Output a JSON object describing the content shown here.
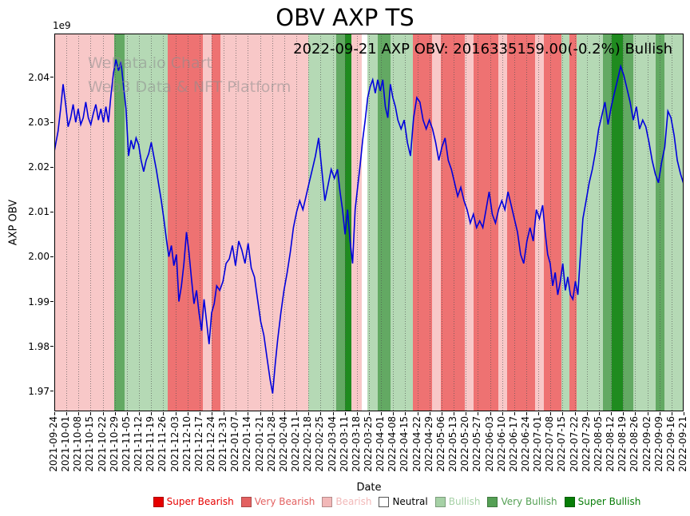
{
  "annotation": "2022-09-21 AXP OBV: 2016335159.00(-0.2%) Bullish",
  "watermark": {
    "line1": "WeData.io Chart",
    "line2": "Web3 Data & NFT Platform"
  },
  "sentiment_colors": {
    "super_bearish": "#e60000",
    "very_bearish": "#ee7272",
    "bearish": "#f8c8c8",
    "neutral": "#ffffff",
    "bullish": "#b5d9b5",
    "very_bullish": "#63a963",
    "super_bullish": "#1f8b1f"
  },
  "legend": [
    {
      "label": "Super Bearish",
      "color": "#e60000",
      "text_color": "#e60000"
    },
    {
      "label": "Very Bearish",
      "color": "#e36161",
      "text_color": "#e36161"
    },
    {
      "label": "Bearish",
      "color": "#f2b8b8",
      "text_color": "#f2b8b8"
    },
    {
      "label": "Neutral",
      "color": "#ffffff",
      "text_color": "#000000",
      "border": "#555555"
    },
    {
      "label": "Bullish",
      "color": "#a6d1a6",
      "text_color": "#a6d1a6"
    },
    {
      "label": "Very Bullish",
      "color": "#55a055",
      "text_color": "#55a055"
    },
    {
      "label": "Super Bullish",
      "color": "#077d07",
      "text_color": "#077d07"
    }
  ],
  "chart_data": {
    "type": "line",
    "title": "OBV AXP TS",
    "xlabel": "Date",
    "ylabel": "AXP OBV",
    "y_unit_multiplier": "1e9",
    "grid": "vertical-dotted-weekly",
    "legend_position": "bottom-center",
    "y_range_1e9": [
      1.9655,
      2.0498
    ],
    "y_ticks": [
      "1.97",
      "1.98",
      "1.99",
      "2.00",
      "2.01",
      "2.02",
      "2.03",
      "2.04"
    ],
    "x_ticks": [
      "2021-09-24",
      "2021-10-01",
      "2021-10-08",
      "2021-10-15",
      "2021-10-22",
      "2021-10-29",
      "2021-11-05",
      "2021-11-12",
      "2021-11-19",
      "2021-11-26",
      "2021-12-03",
      "2021-12-10",
      "2021-12-17",
      "2021-12-24",
      "2021-12-31",
      "2022-01-07",
      "2022-01-14",
      "2022-01-21",
      "2022-01-28",
      "2022-02-04",
      "2022-02-11",
      "2022-02-18",
      "2022-02-25",
      "2022-03-04",
      "2022-03-11",
      "2022-03-18",
      "2022-03-25",
      "2022-04-01",
      "2022-04-08",
      "2022-04-15",
      "2022-04-22",
      "2022-04-29",
      "2022-05-06",
      "2022-05-13",
      "2022-05-20",
      "2022-05-27",
      "2022-06-03",
      "2022-06-10",
      "2022-06-17",
      "2022-06-24",
      "2022-07-01",
      "2022-07-08",
      "2022-07-15",
      "2022-07-22",
      "2022-07-29",
      "2022-08-05",
      "2022-08-12",
      "2022-08-19",
      "2022-08-26",
      "2022-09-02",
      "2022-09-09",
      "2022-09-16",
      "2022-09-21"
    ],
    "line_color": "#0000dd",
    "latest_point": {
      "date": "2022-09-21",
      "obv": 2016335159.0,
      "change_pct": -0.2,
      "signal": "Bullish"
    },
    "series": [
      {
        "name": "AXP OBV",
        "x_frac": [
          0.0,
          0.006,
          0.01,
          0.014,
          0.018,
          0.022,
          0.026,
          0.03,
          0.034,
          0.038,
          0.042,
          0.046,
          0.05,
          0.054,
          0.058,
          0.062,
          0.066,
          0.07,
          0.074,
          0.078,
          0.082,
          0.086,
          0.09,
          0.094,
          0.098,
          0.102,
          0.106,
          0.11,
          0.114,
          0.118,
          0.122,
          0.126,
          0.13,
          0.134,
          0.138,
          0.142,
          0.146,
          0.15,
          0.154,
          0.158,
          0.162,
          0.166,
          0.17,
          0.174,
          0.178,
          0.182,
          0.186,
          0.19,
          0.194,
          0.198,
          0.202,
          0.206,
          0.21,
          0.214,
          0.218,
          0.222,
          0.226,
          0.23,
          0.234,
          0.238,
          0.242,
          0.246,
          0.25,
          0.254,
          0.258,
          0.263,
          0.268,
          0.273,
          0.278,
          0.283,
          0.288,
          0.293,
          0.298,
          0.303,
          0.308,
          0.313,
          0.318,
          0.323,
          0.328,
          0.333,
          0.338,
          0.343,
          0.347,
          0.351,
          0.355,
          0.36,
          0.365,
          0.37,
          0.375,
          0.38,
          0.385,
          0.39,
          0.395,
          0.4,
          0.405,
          0.41,
          0.415,
          0.42,
          0.425,
          0.43,
          0.435,
          0.44,
          0.445,
          0.45,
          0.454,
          0.458,
          0.462,
          0.466,
          0.47,
          0.474,
          0.478,
          0.482,
          0.486,
          0.49,
          0.494,
          0.498,
          0.502,
          0.506,
          0.51,
          0.514,
          0.518,
          0.522,
          0.526,
          0.53,
          0.534,
          0.538,
          0.542,
          0.546,
          0.551,
          0.556,
          0.561,
          0.566,
          0.571,
          0.576,
          0.581,
          0.586,
          0.591,
          0.596,
          0.601,
          0.606,
          0.611,
          0.616,
          0.621,
          0.626,
          0.631,
          0.636,
          0.641,
          0.646,
          0.651,
          0.656,
          0.661,
          0.666,
          0.671,
          0.676,
          0.681,
          0.686,
          0.691,
          0.696,
          0.701,
          0.706,
          0.711,
          0.716,
          0.721,
          0.726,
          0.731,
          0.736,
          0.741,
          0.746,
          0.751,
          0.756,
          0.761,
          0.766,
          0.771,
          0.776,
          0.78,
          0.784,
          0.788,
          0.792,
          0.796,
          0.8,
          0.804,
          0.808,
          0.812,
          0.816,
          0.82,
          0.824,
          0.828,
          0.832,
          0.836,
          0.84,
          0.845,
          0.85,
          0.855,
          0.86,
          0.865,
          0.87,
          0.875,
          0.88,
          0.885,
          0.89,
          0.895,
          0.9,
          0.905,
          0.91,
          0.915,
          0.92,
          0.925,
          0.93,
          0.935,
          0.94,
          0.945,
          0.95,
          0.955,
          0.96,
          0.965,
          0.97,
          0.975,
          0.98,
          0.985,
          0.99,
          0.995,
          1.0
        ],
        "y_1e9": [
          2.0235,
          2.028,
          2.033,
          2.0385,
          2.034,
          2.029,
          2.031,
          2.034,
          2.03,
          2.033,
          2.0295,
          2.031,
          2.0345,
          2.031,
          2.0295,
          2.032,
          2.034,
          2.0305,
          2.033,
          2.03,
          2.0335,
          2.03,
          2.036,
          2.041,
          2.044,
          2.0415,
          2.0435,
          2.038,
          2.033,
          2.0225,
          2.026,
          2.024,
          2.0265,
          2.025,
          2.0215,
          2.019,
          2.0215,
          2.023,
          2.0255,
          2.0225,
          2.0195,
          2.016,
          2.0125,
          2.0085,
          2.004,
          2.0,
          2.0025,
          1.998,
          2.0005,
          1.99,
          1.9935,
          1.9985,
          2.0055,
          2.001,
          1.995,
          1.9895,
          1.9925,
          1.9875,
          1.9835,
          1.9905,
          1.9855,
          1.9805,
          1.9875,
          1.9895,
          1.9935,
          1.9925,
          1.9945,
          1.9985,
          1.9995,
          2.0025,
          1.998,
          2.0035,
          2.0015,
          1.9985,
          2.003,
          1.9975,
          1.9955,
          1.9905,
          1.9855,
          1.9825,
          1.9775,
          1.9725,
          1.9695,
          1.976,
          1.9815,
          1.9875,
          1.9925,
          1.9965,
          2.001,
          2.0065,
          2.01,
          2.0125,
          2.0105,
          2.0135,
          2.0165,
          2.0195,
          2.0225,
          2.0265,
          2.0195,
          2.0125,
          2.016,
          2.0195,
          2.0175,
          2.0195,
          2.0145,
          2.0105,
          2.005,
          2.0105,
          2.0035,
          1.9985,
          2.0105,
          2.0155,
          2.0205,
          2.026,
          2.0305,
          2.0355,
          2.038,
          2.0395,
          2.0365,
          2.0395,
          2.037,
          2.0395,
          2.0335,
          2.031,
          2.0385,
          2.0355,
          2.0335,
          2.0305,
          2.0285,
          2.0305,
          2.0255,
          2.0225,
          2.031,
          2.0355,
          2.0345,
          2.0305,
          2.0285,
          2.0305,
          2.0285,
          2.0255,
          2.0215,
          2.0245,
          2.0265,
          2.0215,
          2.0195,
          2.0165,
          2.0135,
          2.0155,
          2.0125,
          2.0105,
          2.0075,
          2.0095,
          2.0065,
          2.008,
          2.0065,
          2.0105,
          2.0145,
          2.0095,
          2.0075,
          2.0105,
          2.0125,
          2.0105,
          2.0145,
          2.0115,
          2.0085,
          2.0055,
          2.0005,
          1.9985,
          2.0035,
          2.0065,
          2.0035,
          2.0105,
          2.0085,
          2.0115,
          2.0055,
          2.0005,
          1.9985,
          1.9935,
          1.9965,
          1.9915,
          1.9945,
          1.9985,
          1.9925,
          1.9955,
          1.9915,
          1.9905,
          1.9945,
          1.9915,
          2.0005,
          2.0085,
          2.0125,
          2.0165,
          2.0195,
          2.0235,
          2.0285,
          2.0315,
          2.0345,
          2.0295,
          2.0335,
          2.0365,
          2.0395,
          2.0425,
          2.0405,
          2.0375,
          2.0345,
          2.0305,
          2.0335,
          2.0285,
          2.0305,
          2.029,
          2.0255,
          2.0215,
          2.0185,
          2.0165,
          2.021,
          2.0245,
          2.0325,
          2.031,
          2.027,
          2.0215,
          2.0185,
          2.0163
        ]
      }
    ],
    "background_bands": [
      {
        "start": 0.0,
        "end": 0.095,
        "sentiment": "bearish"
      },
      {
        "start": 0.095,
        "end": 0.112,
        "sentiment": "very_bullish"
      },
      {
        "start": 0.112,
        "end": 0.18,
        "sentiment": "bullish"
      },
      {
        "start": 0.18,
        "end": 0.236,
        "sentiment": "very_bearish"
      },
      {
        "start": 0.236,
        "end": 0.25,
        "sentiment": "bearish"
      },
      {
        "start": 0.25,
        "end": 0.264,
        "sentiment": "very_bearish"
      },
      {
        "start": 0.264,
        "end": 0.404,
        "sentiment": "bearish"
      },
      {
        "start": 0.404,
        "end": 0.448,
        "sentiment": "bullish"
      },
      {
        "start": 0.448,
        "end": 0.462,
        "sentiment": "very_bullish"
      },
      {
        "start": 0.462,
        "end": 0.472,
        "sentiment": "super_bullish"
      },
      {
        "start": 0.472,
        "end": 0.488,
        "sentiment": "bearish"
      },
      {
        "start": 0.488,
        "end": 0.498,
        "sentiment": "neutral"
      },
      {
        "start": 0.498,
        "end": 0.514,
        "sentiment": "bullish"
      },
      {
        "start": 0.514,
        "end": 0.534,
        "sentiment": "very_bullish"
      },
      {
        "start": 0.534,
        "end": 0.57,
        "sentiment": "bullish"
      },
      {
        "start": 0.57,
        "end": 0.6,
        "sentiment": "very_bearish"
      },
      {
        "start": 0.6,
        "end": 0.614,
        "sentiment": "bearish"
      },
      {
        "start": 0.614,
        "end": 0.652,
        "sentiment": "very_bearish"
      },
      {
        "start": 0.652,
        "end": 0.666,
        "sentiment": "bearish"
      },
      {
        "start": 0.666,
        "end": 0.706,
        "sentiment": "very_bearish"
      },
      {
        "start": 0.706,
        "end": 0.72,
        "sentiment": "bearish"
      },
      {
        "start": 0.72,
        "end": 0.764,
        "sentiment": "very_bearish"
      },
      {
        "start": 0.764,
        "end": 0.778,
        "sentiment": "bearish"
      },
      {
        "start": 0.778,
        "end": 0.806,
        "sentiment": "very_bearish"
      },
      {
        "start": 0.806,
        "end": 0.818,
        "sentiment": "bullish"
      },
      {
        "start": 0.818,
        "end": 0.83,
        "sentiment": "very_bearish"
      },
      {
        "start": 0.83,
        "end": 0.872,
        "sentiment": "bullish"
      },
      {
        "start": 0.872,
        "end": 0.886,
        "sentiment": "very_bullish"
      },
      {
        "start": 0.886,
        "end": 0.904,
        "sentiment": "super_bullish"
      },
      {
        "start": 0.904,
        "end": 0.92,
        "sentiment": "very_bullish"
      },
      {
        "start": 0.92,
        "end": 0.956,
        "sentiment": "bullish"
      },
      {
        "start": 0.956,
        "end": 0.97,
        "sentiment": "very_bullish"
      },
      {
        "start": 0.97,
        "end": 1.0,
        "sentiment": "bullish"
      }
    ]
  }
}
